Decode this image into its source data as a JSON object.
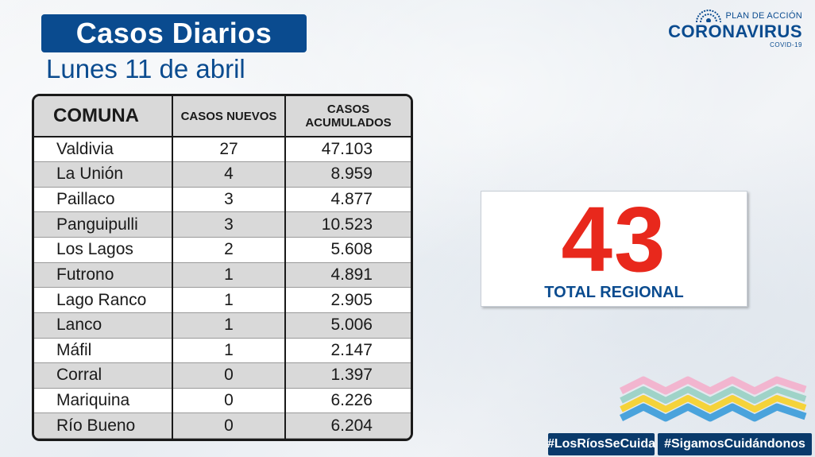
{
  "header": {
    "title": "Casos Diarios",
    "date": "Lunes 11 de abril"
  },
  "logo": {
    "plan": "PLAN DE ACCIÓN",
    "main": "CORONAVIRUS",
    "sub": "COVID-19",
    "icon": "government-seal-icon"
  },
  "table": {
    "headers": {
      "comuna": "COMUNA",
      "nuevos": "CASOS NUEVOS",
      "acumulados_line1": "CASOS",
      "acumulados_line2": "ACUMULADOS"
    },
    "rows": [
      {
        "comuna": "Valdivia",
        "nuevos": "27",
        "acumulados": "47.103"
      },
      {
        "comuna": "La Unión",
        "nuevos": "4",
        "acumulados": "8.959"
      },
      {
        "comuna": "Paillaco",
        "nuevos": "3",
        "acumulados": "4.877"
      },
      {
        "comuna": "Panguipulli",
        "nuevos": "3",
        "acumulados": "10.523"
      },
      {
        "comuna": "Los Lagos",
        "nuevos": "2",
        "acumulados": "5.608"
      },
      {
        "comuna": "Futrono",
        "nuevos": "1",
        "acumulados": "4.891"
      },
      {
        "comuna": "Lago Ranco",
        "nuevos": "1",
        "acumulados": "2.905"
      },
      {
        "comuna": "Lanco",
        "nuevos": "1",
        "acumulados": "5.006"
      },
      {
        "comuna": "Máfil",
        "nuevos": "1",
        "acumulados": "2.147"
      },
      {
        "comuna": "Corral",
        "nuevos": "0",
        "acumulados": "1.397"
      },
      {
        "comuna": "Mariquina",
        "nuevos": "0",
        "acumulados": "6.226"
      },
      {
        "comuna": "Río Bueno",
        "nuevos": "0",
        "acumulados": "6.204"
      }
    ]
  },
  "total": {
    "value": "43",
    "label": "TOTAL REGIONAL"
  },
  "hashtags": {
    "left": "#LosRíosSeCuida",
    "right": "#SigamosCuidándonos"
  },
  "colors": {
    "brand_blue": "#0a4b8f",
    "total_red": "#e8281c",
    "tag_navy": "#0a3a6b"
  }
}
